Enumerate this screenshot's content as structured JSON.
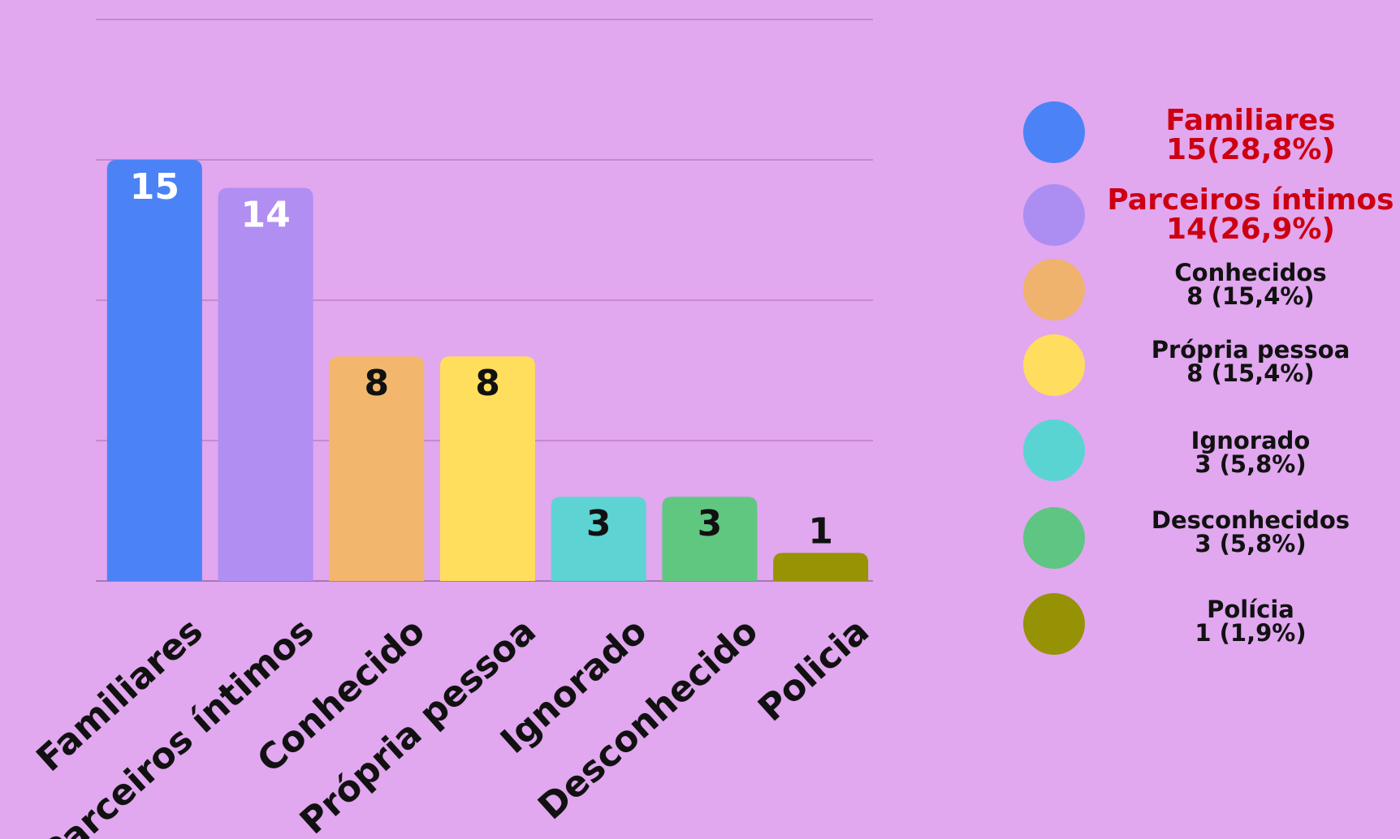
{
  "chart_data": {
    "type": "bar",
    "categories": [
      "Familiares",
      "Parceiros íntimos",
      "Conhecido",
      "Própria pessoa",
      "Ignorado",
      "Desconhecido",
      "Policia"
    ],
    "values": [
      15,
      14,
      8,
      8,
      3,
      3,
      1
    ],
    "data_labels": [
      "15",
      "14",
      "8",
      "8",
      "3",
      "3",
      "1"
    ],
    "colors": [
      "#4b83f6",
      "#b08ef2",
      "#f2b76c",
      "#ffde5d",
      "#5dd3d3",
      "#60c781",
      "#979304"
    ],
    "label_colors": [
      "#ffffff",
      "#ffffff",
      "#111111",
      "#111111",
      "#111111",
      "#111111",
      "#111111"
    ],
    "ylim": [
      0,
      20
    ],
    "grid": true,
    "legend": "right",
    "title": "",
    "xlabel": "",
    "ylabel": ""
  },
  "legend": {
    "items": [
      {
        "name": "Familiares",
        "value": "15(28,8%)",
        "color": "#4b83f6",
        "highlight": true
      },
      {
        "name": "Parceiros íntimos",
        "value": "14(26,9%)",
        "color": "#ac8ef3",
        "highlight": true
      },
      {
        "name": "Conhecidos",
        "value": "8 (15,4%)",
        "color": "#efb36d",
        "highlight": false
      },
      {
        "name": "Própria pessoa",
        "value": "8 (15,4%)",
        "color": "#fedd5f",
        "highlight": false
      },
      {
        "name": "Ignorado",
        "value": "3 (5,8%)",
        "color": "#5ad4d3",
        "highlight": false
      },
      {
        "name": "Desconhecidos",
        "value": "3 (5,8%)",
        "color": "#5ec682",
        "highlight": false
      },
      {
        "name": "Polícia",
        "value": "1 (1,9%)",
        "color": "#969205",
        "highlight": false
      }
    ]
  }
}
